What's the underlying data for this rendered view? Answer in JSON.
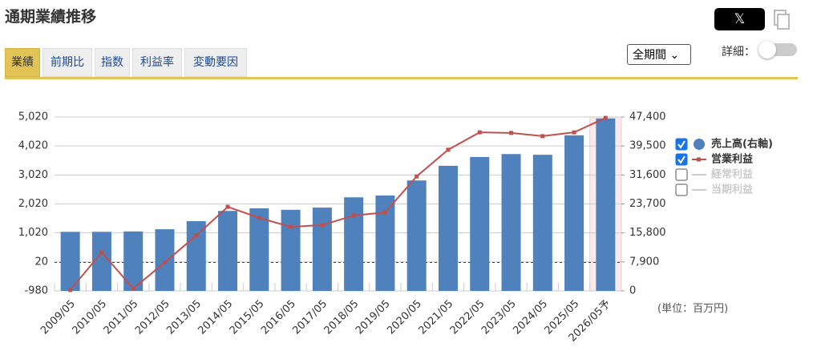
{
  "header": {
    "title": "通期業績推移",
    "share": "𝕏"
  },
  "tabs": [
    "業績",
    "前期比",
    "指数",
    "利益率",
    "変動要因"
  ],
  "period_select": "全期間",
  "detail_label": "詳細：",
  "unit_note": "(単位：百万円)",
  "chart_data": {
    "type": "bar-line",
    "categories": [
      "2009/05",
      "2010/05",
      "2011/05",
      "2012/05",
      "2013/05",
      "2014/05",
      "2015/05",
      "2016/05",
      "2017/05",
      "2018/05",
      "2019/05",
      "2020/05",
      "2021/05",
      "2022/05",
      "2023/05",
      "2024/05",
      "2025/05",
      "2026/05予"
    ],
    "series": [
      {
        "name": "売上高(右軸)",
        "type": "bar",
        "axis": "y2",
        "color": "#4f81bd",
        "values": [
          16100,
          16100,
          16200,
          16800,
          19000,
          21800,
          22500,
          22100,
          22700,
          25500,
          26000,
          30100,
          34100,
          36500,
          37300,
          37100,
          42400,
          47000
        ]
      },
      {
        "name": "営業利益",
        "type": "line",
        "color": "#c0504d",
        "values": [
          -950,
          350,
          -900,
          0,
          930,
          1920,
          1540,
          1230,
          1290,
          1620,
          1730,
          2970,
          3890,
          4490,
          4470,
          4360,
          4490,
          4990
        ]
      }
    ],
    "legend_hidden": [
      "経常利益",
      "当期利益"
    ],
    "ylim": [
      -980,
      5020
    ],
    "yticks": [
      -980,
      20,
      {
        "value": 1020,
        "label": "1,020"
      },
      {
        "value": 2020,
        "label": "2,020"
      },
      {
        "value": 3020,
        "label": "3,020"
      },
      {
        "value": 4020,
        "label": "4,020"
      },
      {
        "value": 5020,
        "label": "5,020"
      }
    ],
    "y2lim": [
      0,
      47400
    ],
    "y2ticks": [
      0,
      {
        "value": 7900,
        "label": "7,900"
      },
      {
        "value": 15800,
        "label": "15,800"
      },
      {
        "value": 23700,
        "label": "23,700"
      },
      {
        "value": 31600,
        "label": "31,600"
      },
      {
        "value": 39500,
        "label": "39,500"
      },
      {
        "value": 47400,
        "label": "47,400"
      }
    ],
    "grid": true
  }
}
